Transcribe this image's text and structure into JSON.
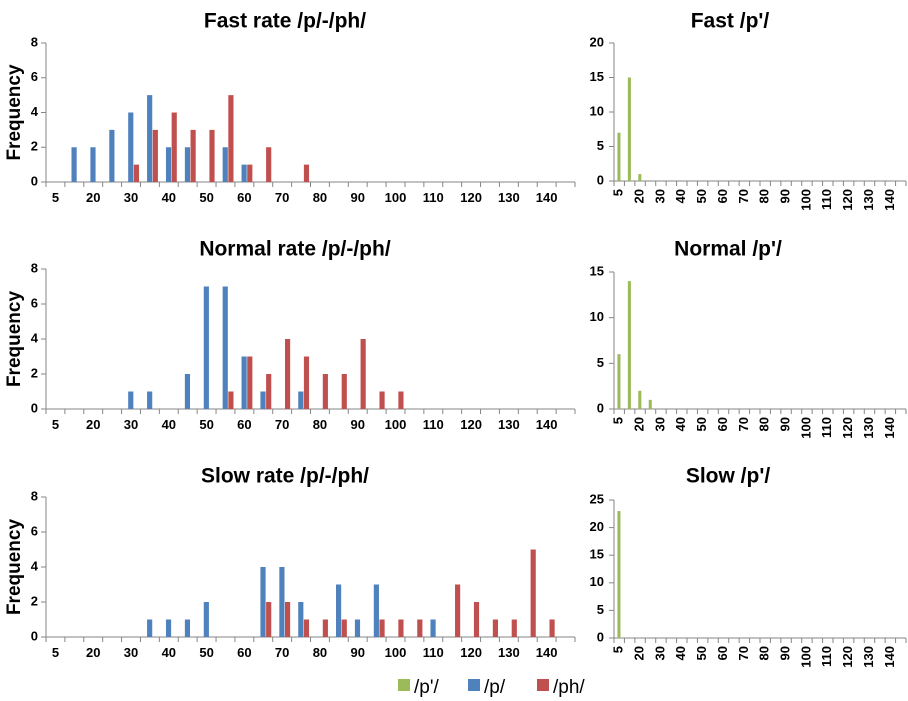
{
  "colors": {
    "p_ejective": "#9bbb59",
    "p": "#4f81bd",
    "ph": "#c0504d",
    "axis": "#868686"
  },
  "legend": {
    "placement": "bottom-center",
    "items": [
      {
        "key": "p_ejective",
        "label": "/p'/"
      },
      {
        "key": "p",
        "label": "/p/"
      },
      {
        "key": "ph",
        "label": "/ph/"
      }
    ]
  },
  "chart_data": [
    {
      "id": "fast-p-ph",
      "type": "bar",
      "title": "Fast rate /p/-/ph/",
      "ylabel": "Frequency",
      "xlabel": "",
      "ylim": [
        0,
        8
      ],
      "yticks": [
        0,
        2,
        4,
        6,
        8
      ],
      "categories": [
        5,
        15,
        20,
        25,
        30,
        35,
        40,
        45,
        50,
        55,
        60,
        65,
        70,
        75,
        80,
        85,
        90,
        95,
        100,
        105,
        110,
        115,
        120,
        125,
        130,
        135,
        140,
        145
      ],
      "tick_labels_every": 2,
      "series": [
        {
          "name": "/p'/",
          "key": "p_ejective",
          "values": [
            0,
            0,
            0,
            0,
            0,
            0,
            0,
            0,
            0,
            0,
            0,
            0,
            0,
            0,
            0,
            0,
            0,
            0,
            0,
            0,
            0,
            0,
            0,
            0,
            0,
            0,
            0,
            0
          ]
        },
        {
          "name": "/p/",
          "key": "p",
          "values": [
            0,
            2,
            2,
            3,
            4,
            5,
            2,
            2,
            0,
            2,
            1,
            0,
            0,
            0,
            0,
            0,
            0,
            0,
            0,
            0,
            0,
            0,
            0,
            0,
            0,
            0,
            0,
            0
          ]
        },
        {
          "name": "/ph/",
          "key": "ph",
          "values": [
            0,
            0,
            0,
            0,
            1,
            3,
            4,
            3,
            3,
            5,
            1,
            2,
            0,
            1,
            0,
            0,
            0,
            0,
            0,
            0,
            0,
            0,
            0,
            0,
            0,
            0,
            0,
            0
          ]
        }
      ]
    },
    {
      "id": "fast-p-ejective",
      "type": "bar",
      "title": "Fast /p'/",
      "ylabel": "",
      "xlabel": "",
      "ylim": [
        0,
        20
      ],
      "yticks": [
        0,
        5,
        10,
        15,
        20
      ],
      "categories": [
        5,
        15,
        20,
        25,
        30,
        35,
        40,
        45,
        50,
        55,
        60,
        65,
        70,
        75,
        80,
        85,
        90,
        95,
        100,
        105,
        110,
        115,
        120,
        125,
        130,
        135,
        140,
        145
      ],
      "tick_labels_every": 2,
      "rotated_tick_labels": true,
      "series": [
        {
          "name": "/p'/",
          "key": "p_ejective",
          "values": [
            7,
            15,
            1,
            0,
            0,
            0,
            0,
            0,
            0,
            0,
            0,
            0,
            0,
            0,
            0,
            0,
            0,
            0,
            0,
            0,
            0,
            0,
            0,
            0,
            0,
            0,
            0,
            0
          ]
        }
      ]
    },
    {
      "id": "normal-p-ph",
      "type": "bar",
      "title": "Normal rate /p/-/ph/",
      "ylabel": "Frequency",
      "xlabel": "",
      "ylim": [
        0,
        8
      ],
      "yticks": [
        0,
        2,
        4,
        6,
        8
      ],
      "categories": [
        5,
        15,
        20,
        25,
        30,
        35,
        40,
        45,
        50,
        55,
        60,
        65,
        70,
        75,
        80,
        85,
        90,
        95,
        100,
        105,
        110,
        115,
        120,
        125,
        130,
        135,
        140,
        145
      ],
      "tick_labels_every": 2,
      "series": [
        {
          "name": "/p'/",
          "key": "p_ejective",
          "values": [
            0,
            0,
            0,
            0,
            0,
            0,
            0,
            0,
            0,
            0,
            0,
            0,
            0,
            0,
            0,
            0,
            0,
            0,
            0,
            0,
            0,
            0,
            0,
            0,
            0,
            0,
            0,
            0
          ]
        },
        {
          "name": "/p/",
          "key": "p",
          "values": [
            0,
            0,
            0,
            0,
            1,
            1,
            0,
            2,
            7,
            7,
            3,
            1,
            0,
            1,
            0,
            0,
            0,
            0,
            0,
            0,
            0,
            0,
            0,
            0,
            0,
            0,
            0,
            0
          ]
        },
        {
          "name": "/ph/",
          "key": "ph",
          "values": [
            0,
            0,
            0,
            0,
            0,
            0,
            0,
            0,
            0,
            1,
            3,
            2,
            4,
            3,
            2,
            2,
            4,
            1,
            1,
            0,
            0,
            0,
            0,
            0,
            0,
            0,
            0,
            0
          ]
        }
      ]
    },
    {
      "id": "normal-p-ejective",
      "type": "bar",
      "title": "Normal /p'/",
      "ylabel": "",
      "xlabel": "",
      "ylim": [
        0,
        15
      ],
      "yticks": [
        0,
        5,
        10,
        15
      ],
      "categories": [
        5,
        15,
        20,
        25,
        30,
        35,
        40,
        45,
        50,
        55,
        60,
        65,
        70,
        75,
        80,
        85,
        90,
        95,
        100,
        105,
        110,
        115,
        120,
        125,
        130,
        135,
        140,
        145
      ],
      "tick_labels_every": 2,
      "rotated_tick_labels": true,
      "series": [
        {
          "name": "/p'/",
          "key": "p_ejective",
          "values": [
            6,
            14,
            2,
            1,
            0,
            0,
            0,
            0,
            0,
            0,
            0,
            0,
            0,
            0,
            0,
            0,
            0,
            0,
            0,
            0,
            0,
            0,
            0,
            0,
            0,
            0,
            0,
            0
          ]
        }
      ]
    },
    {
      "id": "slow-p-ph",
      "type": "bar",
      "title": "Slow rate /p/-/ph/",
      "ylabel": "Frequency",
      "xlabel": "",
      "ylim": [
        0,
        8
      ],
      "yticks": [
        0,
        2,
        4,
        6,
        8
      ],
      "categories": [
        5,
        15,
        20,
        25,
        30,
        35,
        40,
        45,
        50,
        55,
        60,
        65,
        70,
        75,
        80,
        85,
        90,
        95,
        100,
        105,
        110,
        115,
        120,
        125,
        130,
        135,
        140,
        145
      ],
      "tick_labels_every": 2,
      "series": [
        {
          "name": "/p'/",
          "key": "p_ejective",
          "values": [
            0,
            0,
            0,
            0,
            0,
            0,
            0,
            0,
            0,
            0,
            0,
            0,
            0,
            0,
            0,
            0,
            0,
            0,
            0,
            0,
            0,
            0,
            0,
            0,
            0,
            0,
            0,
            0
          ]
        },
        {
          "name": "/p/",
          "key": "p",
          "values": [
            0,
            0,
            0,
            0,
            0,
            1,
            1,
            1,
            2,
            0,
            0,
            4,
            4,
            2,
            0,
            3,
            1,
            3,
            0,
            0,
            1,
            0,
            0,
            0,
            0,
            0,
            0,
            0
          ]
        },
        {
          "name": "/ph/",
          "key": "ph",
          "values": [
            0,
            0,
            0,
            0,
            0,
            0,
            0,
            0,
            0,
            0,
            0,
            2,
            2,
            1,
            1,
            1,
            0,
            1,
            1,
            1,
            0,
            3,
            2,
            1,
            1,
            5,
            1,
            0
          ]
        }
      ]
    },
    {
      "id": "slow-p-ejective",
      "type": "bar",
      "title": "Slow /p'/",
      "ylabel": "",
      "xlabel": "",
      "ylim": [
        0,
        25
      ],
      "yticks": [
        0,
        5,
        10,
        15,
        20,
        25
      ],
      "categories": [
        5,
        15,
        20,
        25,
        30,
        35,
        40,
        45,
        50,
        55,
        60,
        65,
        70,
        75,
        80,
        85,
        90,
        95,
        100,
        105,
        110,
        115,
        120,
        125,
        130,
        135,
        140,
        145
      ],
      "tick_labels_every": 2,
      "rotated_tick_labels": true,
      "series": [
        {
          "name": "/p'/",
          "key": "p_ejective",
          "values": [
            23,
            0,
            0,
            0,
            0,
            0,
            0,
            0,
            0,
            0,
            0,
            0,
            0,
            0,
            0,
            0,
            0,
            0,
            0,
            0,
            0,
            0,
            0,
            0,
            0,
            0,
            0,
            0
          ]
        }
      ]
    }
  ]
}
